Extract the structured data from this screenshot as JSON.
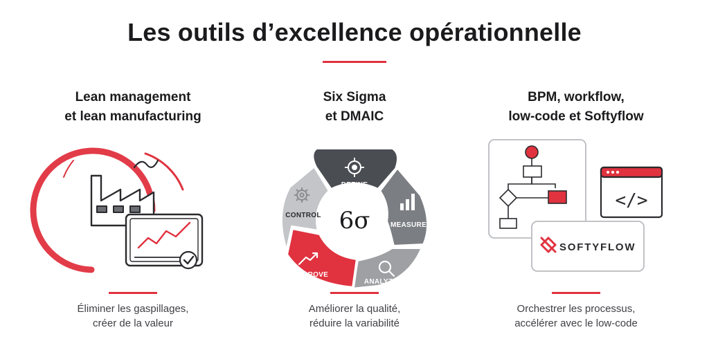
{
  "title": "Les outils d’excellence opérationnelle",
  "colors": {
    "accent": "#e0323f",
    "dark": "#4a4d52",
    "mid": "#7b7e83",
    "light": "#c3c5c8"
  },
  "columns": [
    {
      "heading_lines": [
        "Lean management",
        "et lean manufacturing"
      ],
      "description_lines": [
        "Éliminer les gaspillages,",
        "créer de la valeur"
      ],
      "icons": [
        "factory-icon",
        "line-chart-icon",
        "check-circle-icon"
      ]
    },
    {
      "heading_lines": [
        "Six Sigma",
        "et DMAIC"
      ],
      "center_label": "6σ",
      "phases": [
        "DEFINE",
        "MEASURE",
        "ANALYZE",
        "IMPROVE",
        "CONTROL"
      ],
      "description_lines": [
        "Améliorer la qualité,",
        "réduire la variabilité"
      ]
    },
    {
      "heading_lines": [
        "BPM, workflow,",
        "low-code et Softyflow"
      ],
      "logo_text": "SOFTYFLOW",
      "code_symbol": "</>",
      "description_lines": [
        "Orchestrer les processus,",
        "accélérer avec le low-code"
      ]
    }
  ]
}
